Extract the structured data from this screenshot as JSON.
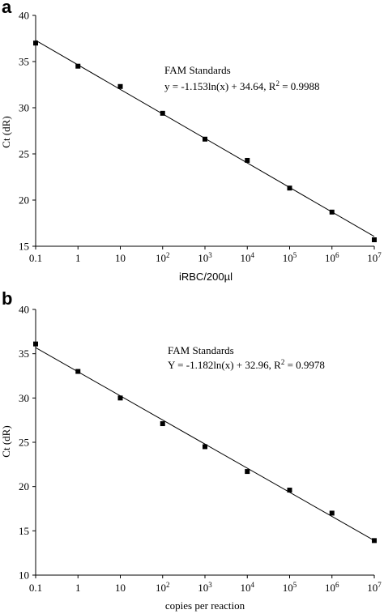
{
  "chart_data": [
    {
      "panel": "a",
      "type": "scatter",
      "xlabel": "iRBC/200µl",
      "ylabel": "Ct (dR)",
      "x_scale": "log",
      "xlim": [
        0.1,
        10000000
      ],
      "ylim": [
        15,
        40
      ],
      "x_ticks": [
        {
          "value": 0.1,
          "base": "0.1",
          "exp": ""
        },
        {
          "value": 1,
          "base": "1",
          "exp": ""
        },
        {
          "value": 10,
          "base": "10",
          "exp": ""
        },
        {
          "value": 100,
          "base": "10",
          "exp": "2"
        },
        {
          "value": 1000,
          "base": "10",
          "exp": "3"
        },
        {
          "value": 10000,
          "base": "10",
          "exp": "4"
        },
        {
          "value": 100000,
          "base": "10",
          "exp": "5"
        },
        {
          "value": 1000000,
          "base": "10",
          "exp": "6"
        },
        {
          "value": 10000000,
          "base": "10",
          "exp": "7"
        }
      ],
      "y_ticks": [
        15,
        20,
        25,
        30,
        35,
        40
      ],
      "x": [
        0.1,
        1,
        10,
        100,
        1000,
        10000,
        100000,
        1000000,
        10000000
      ],
      "y": [
        37.0,
        34.5,
        32.3,
        29.4,
        26.6,
        24.3,
        21.3,
        18.7,
        15.7
      ],
      "fit": {
        "slope": -1.153,
        "intercept": 34.64,
        "r2": 0.9988
      },
      "annotation": {
        "line1": "FAM Standards",
        "eq_prefix": "y = -1.153ln(x) + 34.64,  R",
        "eq_sup": "2",
        "eq_suffix": " = 0.9988"
      },
      "grid": false
    },
    {
      "panel": "b",
      "type": "scatter",
      "xlabel": "copies per reaction",
      "ylabel": "Ct (dR)",
      "x_scale": "log",
      "xlim": [
        0.1,
        10000000
      ],
      "ylim": [
        10,
        40
      ],
      "x_ticks": [
        {
          "value": 0.1,
          "base": "0.1",
          "exp": ""
        },
        {
          "value": 1,
          "base": "1",
          "exp": ""
        },
        {
          "value": 10,
          "base": "10",
          "exp": ""
        },
        {
          "value": 100,
          "base": "10",
          "exp": "2"
        },
        {
          "value": 1000,
          "base": "10",
          "exp": "3"
        },
        {
          "value": 10000,
          "base": "10",
          "exp": "4"
        },
        {
          "value": 100000,
          "base": "10",
          "exp": "5"
        },
        {
          "value": 1000000,
          "base": "10",
          "exp": "6"
        },
        {
          "value": 10000000,
          "base": "10",
          "exp": "7"
        }
      ],
      "y_ticks": [
        10,
        15,
        20,
        25,
        30,
        35,
        40
      ],
      "x": [
        0.1,
        1,
        10,
        100,
        1000,
        10000,
        100000,
        1000000,
        10000000
      ],
      "y": [
        36.1,
        33.0,
        30.0,
        27.1,
        24.5,
        21.7,
        19.6,
        17.0,
        13.9
      ],
      "fit": {
        "slope": -1.182,
        "intercept": 32.96,
        "r2": 0.9978
      },
      "annotation": {
        "line1": "FAM Standards",
        "eq_prefix": "Y = -1.182ln(x) + 32.96,  R",
        "eq_sup": "2",
        "eq_suffix": " = 0.9978"
      },
      "grid": false
    }
  ]
}
